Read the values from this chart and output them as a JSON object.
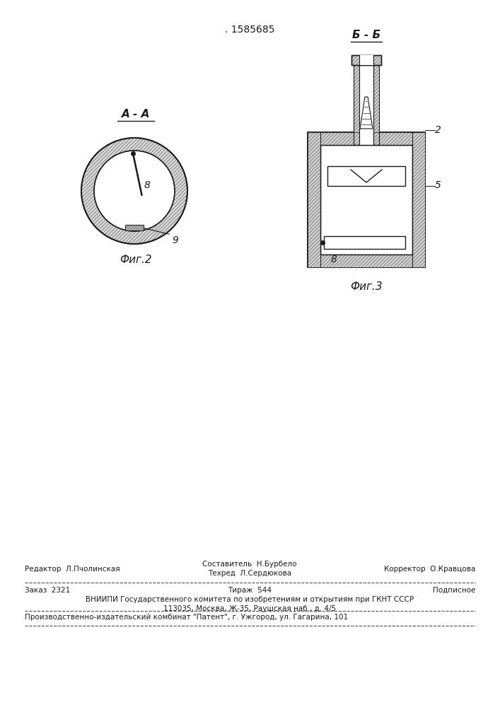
{
  "patent_number": ". 1585685",
  "fig2_label": "А - А",
  "fig2_caption": "Фиг.2",
  "fig3_label": "Б - Б",
  "fig3_caption": "Фиг.3",
  "label_8_fig2": "8",
  "label_9_fig2": "9",
  "label_2_fig3": "2",
  "label_5_fig3": "5",
  "label_8_fig3": "8",
  "editor_line": "Редактор  Л.Пчолинская",
  "composer_line": "Составитель  Н.Бурбело",
  "techred_line": "Техред  Л.Сердюкова",
  "corrector_line": "Корректор  О.Кравцова",
  "order_line": "Заказ  2321",
  "tirazh_line": "Тираж  544",
  "podpisnoe_line": "Подписное",
  "vnipi_line": "ВНИИПИ Государственного комитета по изобретениям и открытиям при ГКНТ СССР",
  "address_line": "113035, Москва, Ж-35, Раушская наб., д. 4/5",
  "publisher_line": "Производственно-издательский комбинат \"Патент\", г. Ужгород, ул. Гагарина, 101"
}
